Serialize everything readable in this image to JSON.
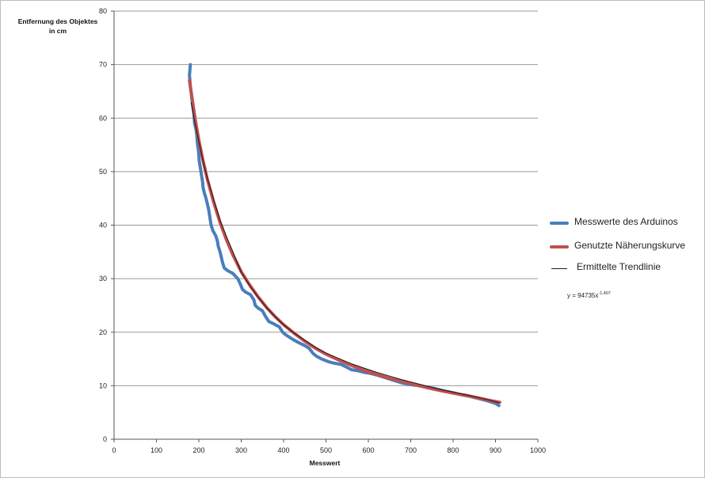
{
  "chart_data": {
    "type": "line",
    "title": "",
    "ylabel_lines": [
      "Entfernung des Objektes",
      "in cm"
    ],
    "xlabel": "Messwert",
    "xlim": [
      0,
      1000
    ],
    "ylim": [
      0,
      80
    ],
    "xticks": [
      0,
      100,
      200,
      300,
      400,
      500,
      600,
      700,
      800,
      900,
      1000
    ],
    "yticks": [
      0,
      10,
      20,
      30,
      40,
      50,
      60,
      70,
      80
    ],
    "grid": "horizontal",
    "legend_position": "right",
    "equation_text": "y = 94735x",
    "equation_exponent": "-1,407",
    "series": [
      {
        "name": "Messwerte des Arduinos",
        "color": "#4a7ebb",
        "width": 4,
        "points": [
          [
            180,
            70
          ],
          [
            178,
            68
          ],
          [
            180,
            66
          ],
          [
            183,
            64
          ],
          [
            186,
            62
          ],
          [
            188,
            61
          ],
          [
            190,
            59
          ],
          [
            193,
            58
          ],
          [
            195,
            57
          ],
          [
            197,
            55
          ],
          [
            199,
            54
          ],
          [
            200,
            53
          ],
          [
            201,
            52
          ],
          [
            203,
            51
          ],
          [
            205,
            50
          ],
          [
            207,
            49
          ],
          [
            209,
            48
          ],
          [
            210,
            47
          ],
          [
            213,
            46
          ],
          [
            217,
            45
          ],
          [
            220,
            44
          ],
          [
            223,
            43
          ],
          [
            225,
            42
          ],
          [
            227,
            41
          ],
          [
            229,
            40
          ],
          [
            233,
            39
          ],
          [
            240,
            38
          ],
          [
            244,
            37
          ],
          [
            246,
            36
          ],
          [
            250,
            35
          ],
          [
            253,
            34
          ],
          [
            256,
            33
          ],
          [
            260,
            32
          ],
          [
            268,
            31.5
          ],
          [
            280,
            31
          ],
          [
            292,
            30
          ],
          [
            298,
            29
          ],
          [
            303,
            28
          ],
          [
            310,
            27.5
          ],
          [
            322,
            27
          ],
          [
            330,
            26
          ],
          [
            333,
            25
          ],
          [
            340,
            24.5
          ],
          [
            350,
            24
          ],
          [
            357,
            23
          ],
          [
            365,
            22
          ],
          [
            378,
            21.5
          ],
          [
            390,
            21
          ],
          [
            398,
            20
          ],
          [
            405,
            19.5
          ],
          [
            415,
            19
          ],
          [
            425,
            18.5
          ],
          [
            437,
            18
          ],
          [
            450,
            17.5
          ],
          [
            460,
            17
          ],
          [
            465,
            16.5
          ],
          [
            470,
            16
          ],
          [
            478,
            15.5
          ],
          [
            490,
            15
          ],
          [
            505,
            14.5
          ],
          [
            520,
            14.2
          ],
          [
            535,
            14
          ],
          [
            548,
            13.5
          ],
          [
            560,
            13
          ],
          [
            575,
            12.8
          ],
          [
            590,
            12.5
          ],
          [
            605,
            12.3
          ],
          [
            620,
            12
          ],
          [
            640,
            11.5
          ],
          [
            660,
            11
          ],
          [
            680,
            10.5
          ],
          [
            700,
            10.2
          ],
          [
            720,
            10
          ],
          [
            740,
            9.7
          ],
          [
            760,
            9.4
          ],
          [
            780,
            9
          ],
          [
            800,
            8.7
          ],
          [
            820,
            8.3
          ],
          [
            840,
            8
          ],
          [
            860,
            7.6
          ],
          [
            880,
            7.2
          ],
          [
            900,
            6.7
          ],
          [
            908,
            6.3
          ]
        ]
      },
      {
        "name": "Genutzte Näherungskurve",
        "color": "#c0504d",
        "width": 4,
        "points": [
          [
            178,
            67
          ],
          [
            185,
            63.2
          ],
          [
            192,
            59.5
          ],
          [
            200,
            55.9
          ],
          [
            210,
            52
          ],
          [
            220,
            48.6
          ],
          [
            235,
            44.3
          ],
          [
            250,
            40.5
          ],
          [
            265,
            37.3
          ],
          [
            280,
            34.5
          ],
          [
            300,
            31.3
          ],
          [
            320,
            28.8
          ],
          [
            340,
            26.6
          ],
          [
            360,
            24.6
          ],
          [
            380,
            22.9
          ],
          [
            400,
            21.4
          ],
          [
            425,
            19.8
          ],
          [
            450,
            18.3
          ],
          [
            475,
            17
          ],
          [
            500,
            15.9
          ],
          [
            530,
            14.8
          ],
          [
            560,
            13.8
          ],
          [
            590,
            12.9
          ],
          [
            620,
            12.1
          ],
          [
            650,
            11.4
          ],
          [
            680,
            10.8
          ],
          [
            710,
            10.2
          ],
          [
            740,
            9.6
          ],
          [
            770,
            9.1
          ],
          [
            800,
            8.6
          ],
          [
            830,
            8.2
          ],
          [
            860,
            7.7
          ],
          [
            890,
            7.2
          ],
          [
            910,
            6.9
          ]
        ]
      },
      {
        "name": "Ermittelte Trendlinie",
        "color": "#1a1a1a",
        "width": 1,
        "points": [
          [
            182,
            62.9
          ],
          [
            190,
            59.4
          ],
          [
            200,
            55.6
          ],
          [
            210,
            51.9
          ],
          [
            220,
            48.8
          ],
          [
            235,
            44.8
          ],
          [
            250,
            40.9
          ],
          [
            265,
            37.9
          ],
          [
            280,
            35.1
          ],
          [
            300,
            31.2
          ],
          [
            320,
            28.7
          ],
          [
            340,
            26.5
          ],
          [
            360,
            24.6
          ],
          [
            380,
            22.9
          ],
          [
            400,
            21.4
          ],
          [
            425,
            19.8
          ],
          [
            450,
            18.5
          ],
          [
            475,
            17.2
          ],
          [
            500,
            16.1
          ],
          [
            530,
            15.1
          ],
          [
            560,
            14.1
          ],
          [
            590,
            13.3
          ],
          [
            620,
            12.5
          ],
          [
            650,
            11.8
          ],
          [
            680,
            11.1
          ],
          [
            710,
            10.5
          ],
          [
            740,
            9.9
          ],
          [
            770,
            9.3
          ],
          [
            800,
            8.8
          ],
          [
            830,
            8.3
          ],
          [
            860,
            7.8
          ],
          [
            890,
            7.2
          ],
          [
            908,
            6.8
          ]
        ]
      }
    ]
  }
}
